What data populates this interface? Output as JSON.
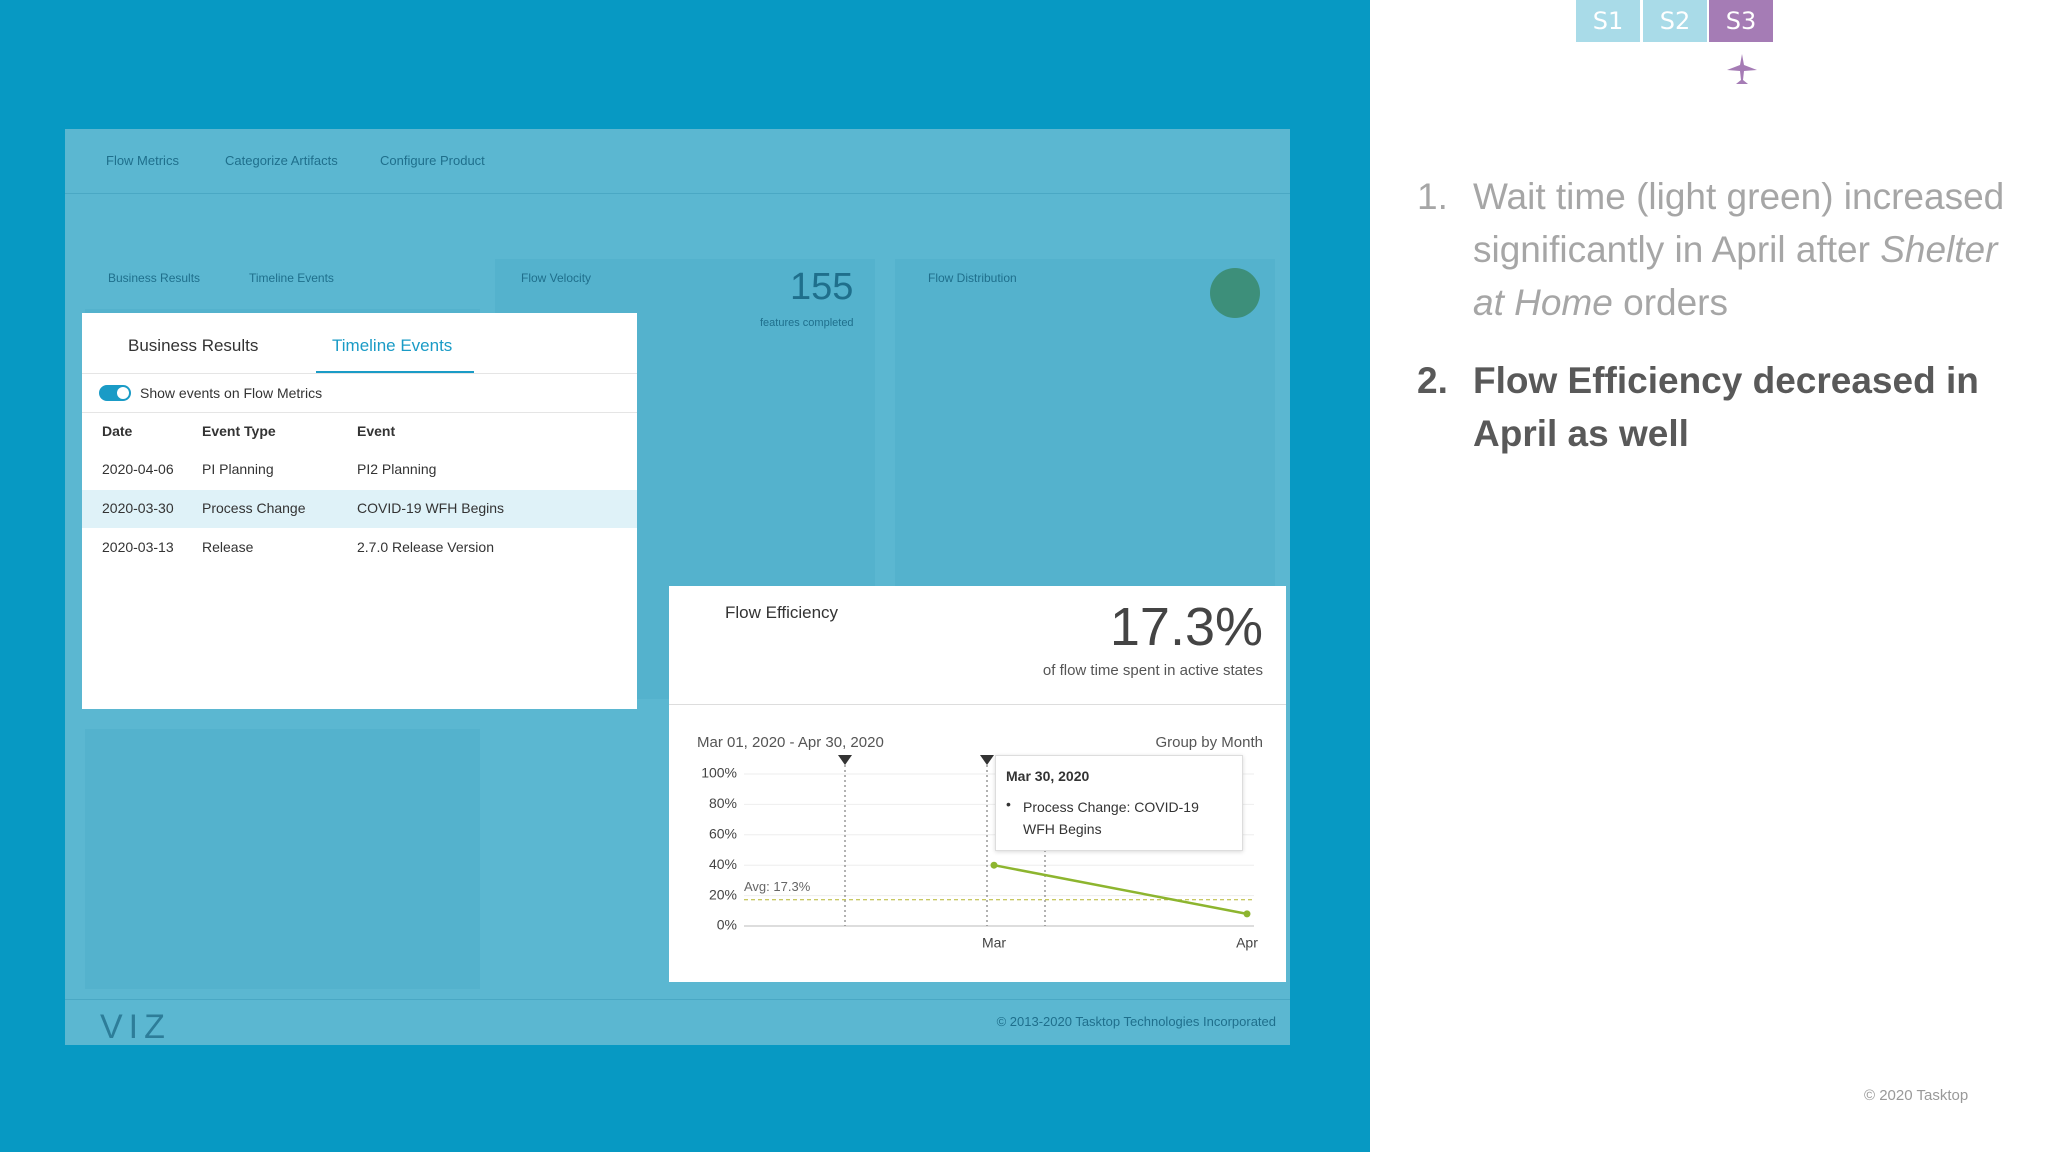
{
  "slide_tabs": [
    "S1",
    "S2",
    "S3"
  ],
  "dashboard": {
    "nav": [
      "Flow Metrics",
      "Categorize Artifacts",
      "Configure Product"
    ],
    "panels": [
      "Business Results",
      "Timeline Events",
      "Flow Velocity",
      "Flow Distribution"
    ],
    "velocity_value": "155",
    "velocity_caption": "features completed",
    "logo": "VIZ",
    "footer": "© 2013-2020 Tasktop Technologies Incorporated"
  },
  "timeline_popup": {
    "tabs": [
      "Business Results",
      "Timeline Events"
    ],
    "toggle": "Show events on Flow Metrics",
    "columns": [
      "Date",
      "Event Type",
      "Event"
    ],
    "rows": [
      [
        "2020-04-06",
        "PI Planning",
        "PI2 Planning"
      ],
      [
        "2020-03-30",
        "Process Change",
        "COVID-19 WFH Begins"
      ],
      [
        "2020-03-13",
        "Release",
        "2.7.0 Release Version"
      ]
    ]
  },
  "flow_efficiency": {
    "type": "line",
    "title": "Flow Efficiency",
    "headline": "17.3%",
    "subtitle": "of flow time spent in active states",
    "date_range": "Mar 01, 2020 - Apr 30, 2020",
    "group_by": "Group by Month",
    "categories": [
      "Mar",
      "Apr"
    ],
    "series": [
      {
        "color": "#8db52f",
        "values": [
          40,
          8
        ]
      }
    ],
    "ylim": [
      0,
      100
    ],
    "yticks": [
      {
        "value": 0,
        "label": "0%"
      },
      {
        "value": 20,
        "label": "20%"
      },
      {
        "value": 40,
        "label": "40%"
      },
      {
        "value": 60,
        "label": "60%"
      },
      {
        "value": 80,
        "label": "80%"
      },
      {
        "value": 100,
        "label": "100%"
      }
    ],
    "avg": {
      "value": 17.3,
      "label": "Avg: 17.3%"
    },
    "tooltip": {
      "date": "Mar 30, 2020",
      "text": "Process Change: COVID-19 WFH Begins"
    }
  },
  "notes": [
    {
      "number": "1.",
      "before": "Wait time (light green) increased significantly in April after ",
      "emphasis": "Shelter at Home",
      "after": " orders"
    },
    {
      "number": "2.",
      "text": "Flow Efficiency decreased in April as well"
    }
  ],
  "copyright": "© 2020 Tasktop"
}
